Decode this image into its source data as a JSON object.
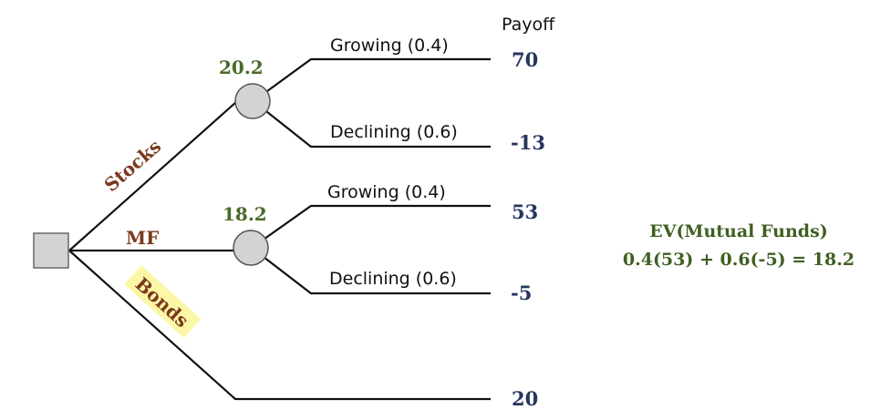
{
  "header": {
    "payoff_label": "Payoff"
  },
  "branches": {
    "stocks": "Stocks",
    "mf": "MF",
    "bonds": "Bonds"
  },
  "chance_nodes": {
    "stocks_ev": "20.2",
    "mf_ev": "18.2"
  },
  "outcomes": {
    "stocks_growing": "Growing (0.4)",
    "stocks_declining": "Declining (0.6)",
    "mf_growing": "Growing (0.4)",
    "mf_declining": "Declining (0.6)"
  },
  "payoffs": {
    "stocks_growing": "70",
    "stocks_declining": "-13",
    "mf_growing": "53",
    "mf_declining": "-5",
    "bonds": "20"
  },
  "formula": {
    "title": "EV(Mutual Funds)",
    "expression": "0.4(53) + 0.6(-5) = 18.2"
  },
  "colors": {
    "node_fill": "#d3d3d3",
    "bonds_highlight": "#fbf7a6",
    "payoff_color": "#26355f",
    "ev_color": "#4a6a2a",
    "branch_color": "#7a3a1c"
  }
}
